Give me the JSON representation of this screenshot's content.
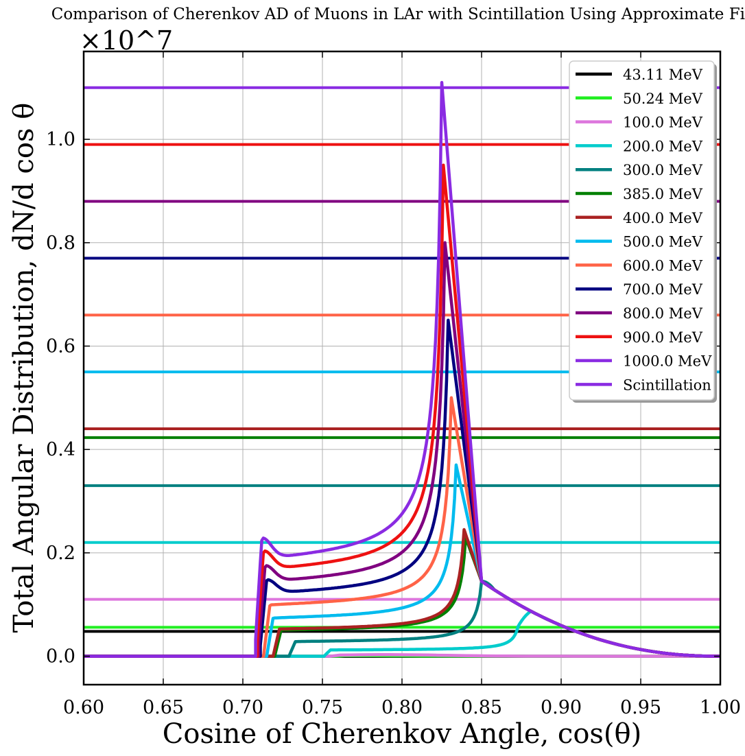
{
  "chart_data": {
    "type": "line",
    "title": "Comparison of Cherenkov AD of Muons in LAr with Scintillation Using Approximate Fit",
    "xlabel": "Cosine of Cherenkov Angle, cos(θ)",
    "ylabel": "Total Angular Distribution, dN/d cos θ",
    "y_multiplier": "×10^7",
    "xlim": [
      0.6,
      1.0
    ],
    "ylim": [
      -0.055,
      1.17
    ],
    "xticks": [
      "0.60",
      "0.65",
      "0.70",
      "0.75",
      "0.80",
      "0.85",
      "0.90",
      "0.95",
      "1.00"
    ],
    "yticks": [
      "0.0",
      "0.2",
      "0.4",
      "0.6",
      "0.8",
      "1.0"
    ],
    "grid": true,
    "legend_position": "top-right",
    "series": [
      {
        "name": "43.11 MeV",
        "color": "#000000",
        "threshold": 0.76,
        "peak_x": 0.76,
        "peak_y": 0.0,
        "plateau": 0.0,
        "level": 0.048
      },
      {
        "name": "50.24 MeV",
        "color": "#22ee22",
        "threshold": 0.758,
        "peak_x": 0.77,
        "peak_y": 0.001,
        "plateau": 0.0005,
        "level": 0.056
      },
      {
        "name": "100.0 MeV",
        "color": "#dd77dd",
        "threshold": 0.755,
        "peak_x": 0.79,
        "peak_y": 0.003,
        "plateau": 0.001,
        "level": 0.11
      },
      {
        "name": "200.0 MeV",
        "color": "#00cccc",
        "threshold": 0.751,
        "peak_x": 0.873,
        "peak_y": 0.058,
        "plateau": 0.012,
        "level": 0.22
      },
      {
        "name": "300.0 MeV",
        "color": "#008080",
        "threshold": 0.729,
        "peak_x": 0.85,
        "peak_y": 0.145,
        "plateau": 0.028,
        "level": 0.33
      },
      {
        "name": "385.0 MeV",
        "color": "#008000",
        "threshold": 0.72,
        "peak_x": 0.84,
        "peak_y": 0.23,
        "plateau": 0.05,
        "level": 0.423
      },
      {
        "name": "400.0 MeV",
        "color": "#aa2222",
        "threshold": 0.719,
        "peak_x": 0.839,
        "peak_y": 0.245,
        "plateau": 0.052,
        "level": 0.44
      },
      {
        "name": "500.0 MeV",
        "color": "#00bbee",
        "threshold": 0.715,
        "peak_x": 0.834,
        "peak_y": 0.37,
        "plateau": 0.073,
        "level": 0.55
      },
      {
        "name": "600.0 MeV",
        "color": "#ff6347",
        "threshold": 0.713,
        "peak_x": 0.831,
        "peak_y": 0.5,
        "plateau": 0.098,
        "level": 0.66
      },
      {
        "name": "700.0 MeV",
        "color": "#000080",
        "threshold": 0.711,
        "peak_x": 0.829,
        "peak_y": 0.65,
        "plateau": 0.12,
        "level": 0.77
      },
      {
        "name": "800.0 MeV",
        "color": "#800080",
        "threshold": 0.71,
        "peak_x": 0.827,
        "peak_y": 0.8,
        "plateau": 0.142,
        "level": 0.88
      },
      {
        "name": "900.0 MeV",
        "color": "#ee1111",
        "threshold": 0.709,
        "peak_x": 0.826,
        "peak_y": 0.95,
        "plateau": 0.165,
        "level": 0.99
      },
      {
        "name": "1000.0 MeV",
        "color": "#8a2be2",
        "threshold": 0.708,
        "peak_x": 0.825,
        "peak_y": 1.11,
        "plateau": 0.185,
        "level": 1.1
      },
      {
        "name": "Scintillation",
        "color": "#8a2be2"
      }
    ]
  }
}
